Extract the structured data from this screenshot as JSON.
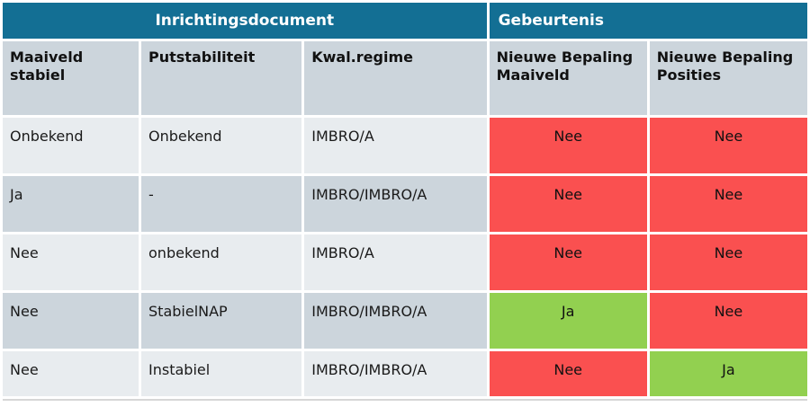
{
  "table": {
    "group_headers": {
      "left": {
        "label": "Inrichtingsdocument",
        "colspan": 3
      },
      "right": {
        "label": "Gebeurtenis",
        "colspan": 2
      }
    },
    "columns": {
      "maaiveld_stabiel": "Maaiveld stabiel",
      "putstabiliteit": "Putstabiliteit",
      "kwal_regime": "Kwal.regime",
      "nieuwe_bepaling_maaiveld": "Nieuwe Bepaling Maaiveld",
      "nieuwe_bepaling_posities": "Nieuwe Bepaling Posities"
    },
    "rows": [
      {
        "maaiveld_stabiel": "Onbekend",
        "putstabiliteit": "Onbekend",
        "kwal_regime": "IMBRO/A",
        "events": [
          {
            "value": "Nee",
            "status": "no"
          },
          {
            "value": "Nee",
            "status": "no"
          }
        ]
      },
      {
        "maaiveld_stabiel": "Ja",
        "putstabiliteit": "-",
        "kwal_regime": "IMBRO/IMBRO/A",
        "events": [
          {
            "value": "Nee",
            "status": "no"
          },
          {
            "value": "Nee",
            "status": "no"
          }
        ]
      },
      {
        "maaiveld_stabiel": "Nee",
        "putstabiliteit": "onbekend",
        "kwal_regime": "IMBRO/A",
        "events": [
          {
            "value": "Nee",
            "status": "no"
          },
          {
            "value": "Nee",
            "status": "no"
          }
        ]
      },
      {
        "maaiveld_stabiel": "Nee",
        "putstabiliteit": "StabielNAP",
        "kwal_regime": "IMBRO/IMBRO/A",
        "events": [
          {
            "value": "Ja",
            "status": "yes"
          },
          {
            "value": "Nee",
            "status": "no"
          }
        ]
      },
      {
        "maaiveld_stabiel": "Nee",
        "putstabiliteit": "Instabiel",
        "kwal_regime": "IMBRO/IMBRO/A",
        "events": [
          {
            "value": "Nee",
            "status": "no"
          },
          {
            "value": "Ja",
            "status": "yes"
          }
        ]
      }
    ],
    "colors": {
      "header_teal": "#136f94",
      "row_light": "#e8ecef",
      "row_dark": "#ccd5dc",
      "event_no": "#fa5050",
      "event_yes": "#92d050"
    }
  }
}
